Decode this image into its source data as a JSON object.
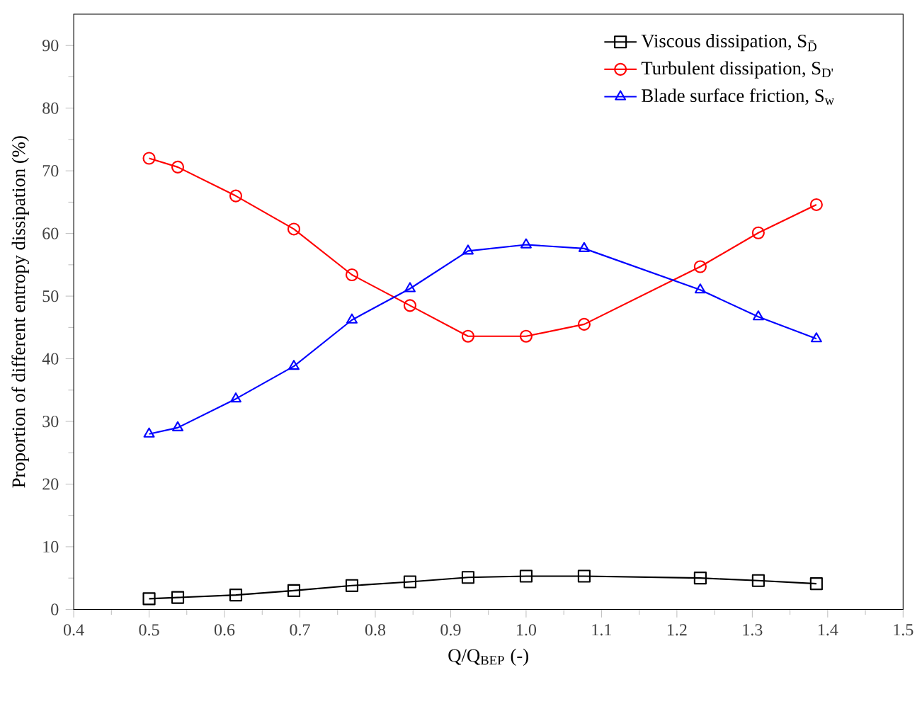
{
  "chart_data": {
    "type": "line",
    "xlabel": "Q/Q$_{BEP}$ (-)",
    "ylabel": "Proportion of different entropy dissipation (%)",
    "x": [
      0.5,
      0.538,
      0.615,
      0.692,
      0.769,
      0.846,
      0.923,
      1.0,
      1.077,
      1.231,
      1.308,
      1.385
    ],
    "series": [
      {
        "name": "Viscous dissipation, S$_{D̄}$",
        "color": "#000000",
        "marker": "square",
        "values": [
          1.7,
          1.9,
          2.3,
          3.0,
          3.8,
          4.4,
          5.1,
          5.3,
          5.3,
          5.0,
          4.6,
          4.1
        ]
      },
      {
        "name": "Turbulent dissipation, S$_{D'}$",
        "color": "#ff0000",
        "marker": "circle",
        "values": [
          72,
          70.6,
          66,
          60.7,
          53.4,
          48.5,
          43.6,
          43.6,
          45.5,
          54.7,
          60.1,
          64.6
        ]
      },
      {
        "name": "Blade surface friction, S$_{w}$",
        "color": "#0000ff",
        "marker": "triangle",
        "values": [
          28,
          29,
          33.6,
          38.8,
          46.2,
          51.2,
          57.2,
          58.2,
          57.6,
          51,
          46.7,
          43.2
        ]
      }
    ],
    "xlim": [
      0.4,
      1.5
    ],
    "ylim": [
      0,
      95
    ],
    "xticks": [
      0.4,
      0.5,
      0.6,
      0.7,
      0.8,
      0.9,
      {
        "value": 1.0,
        "label": "1.0"
      },
      1.1,
      1.2,
      1.3,
      1.4,
      1.5
    ],
    "yticks": [
      0,
      10,
      20,
      30,
      40,
      50,
      60,
      70,
      80,
      90
    ],
    "legend": "top right",
    "grid": false,
    "line_style": "solid"
  }
}
